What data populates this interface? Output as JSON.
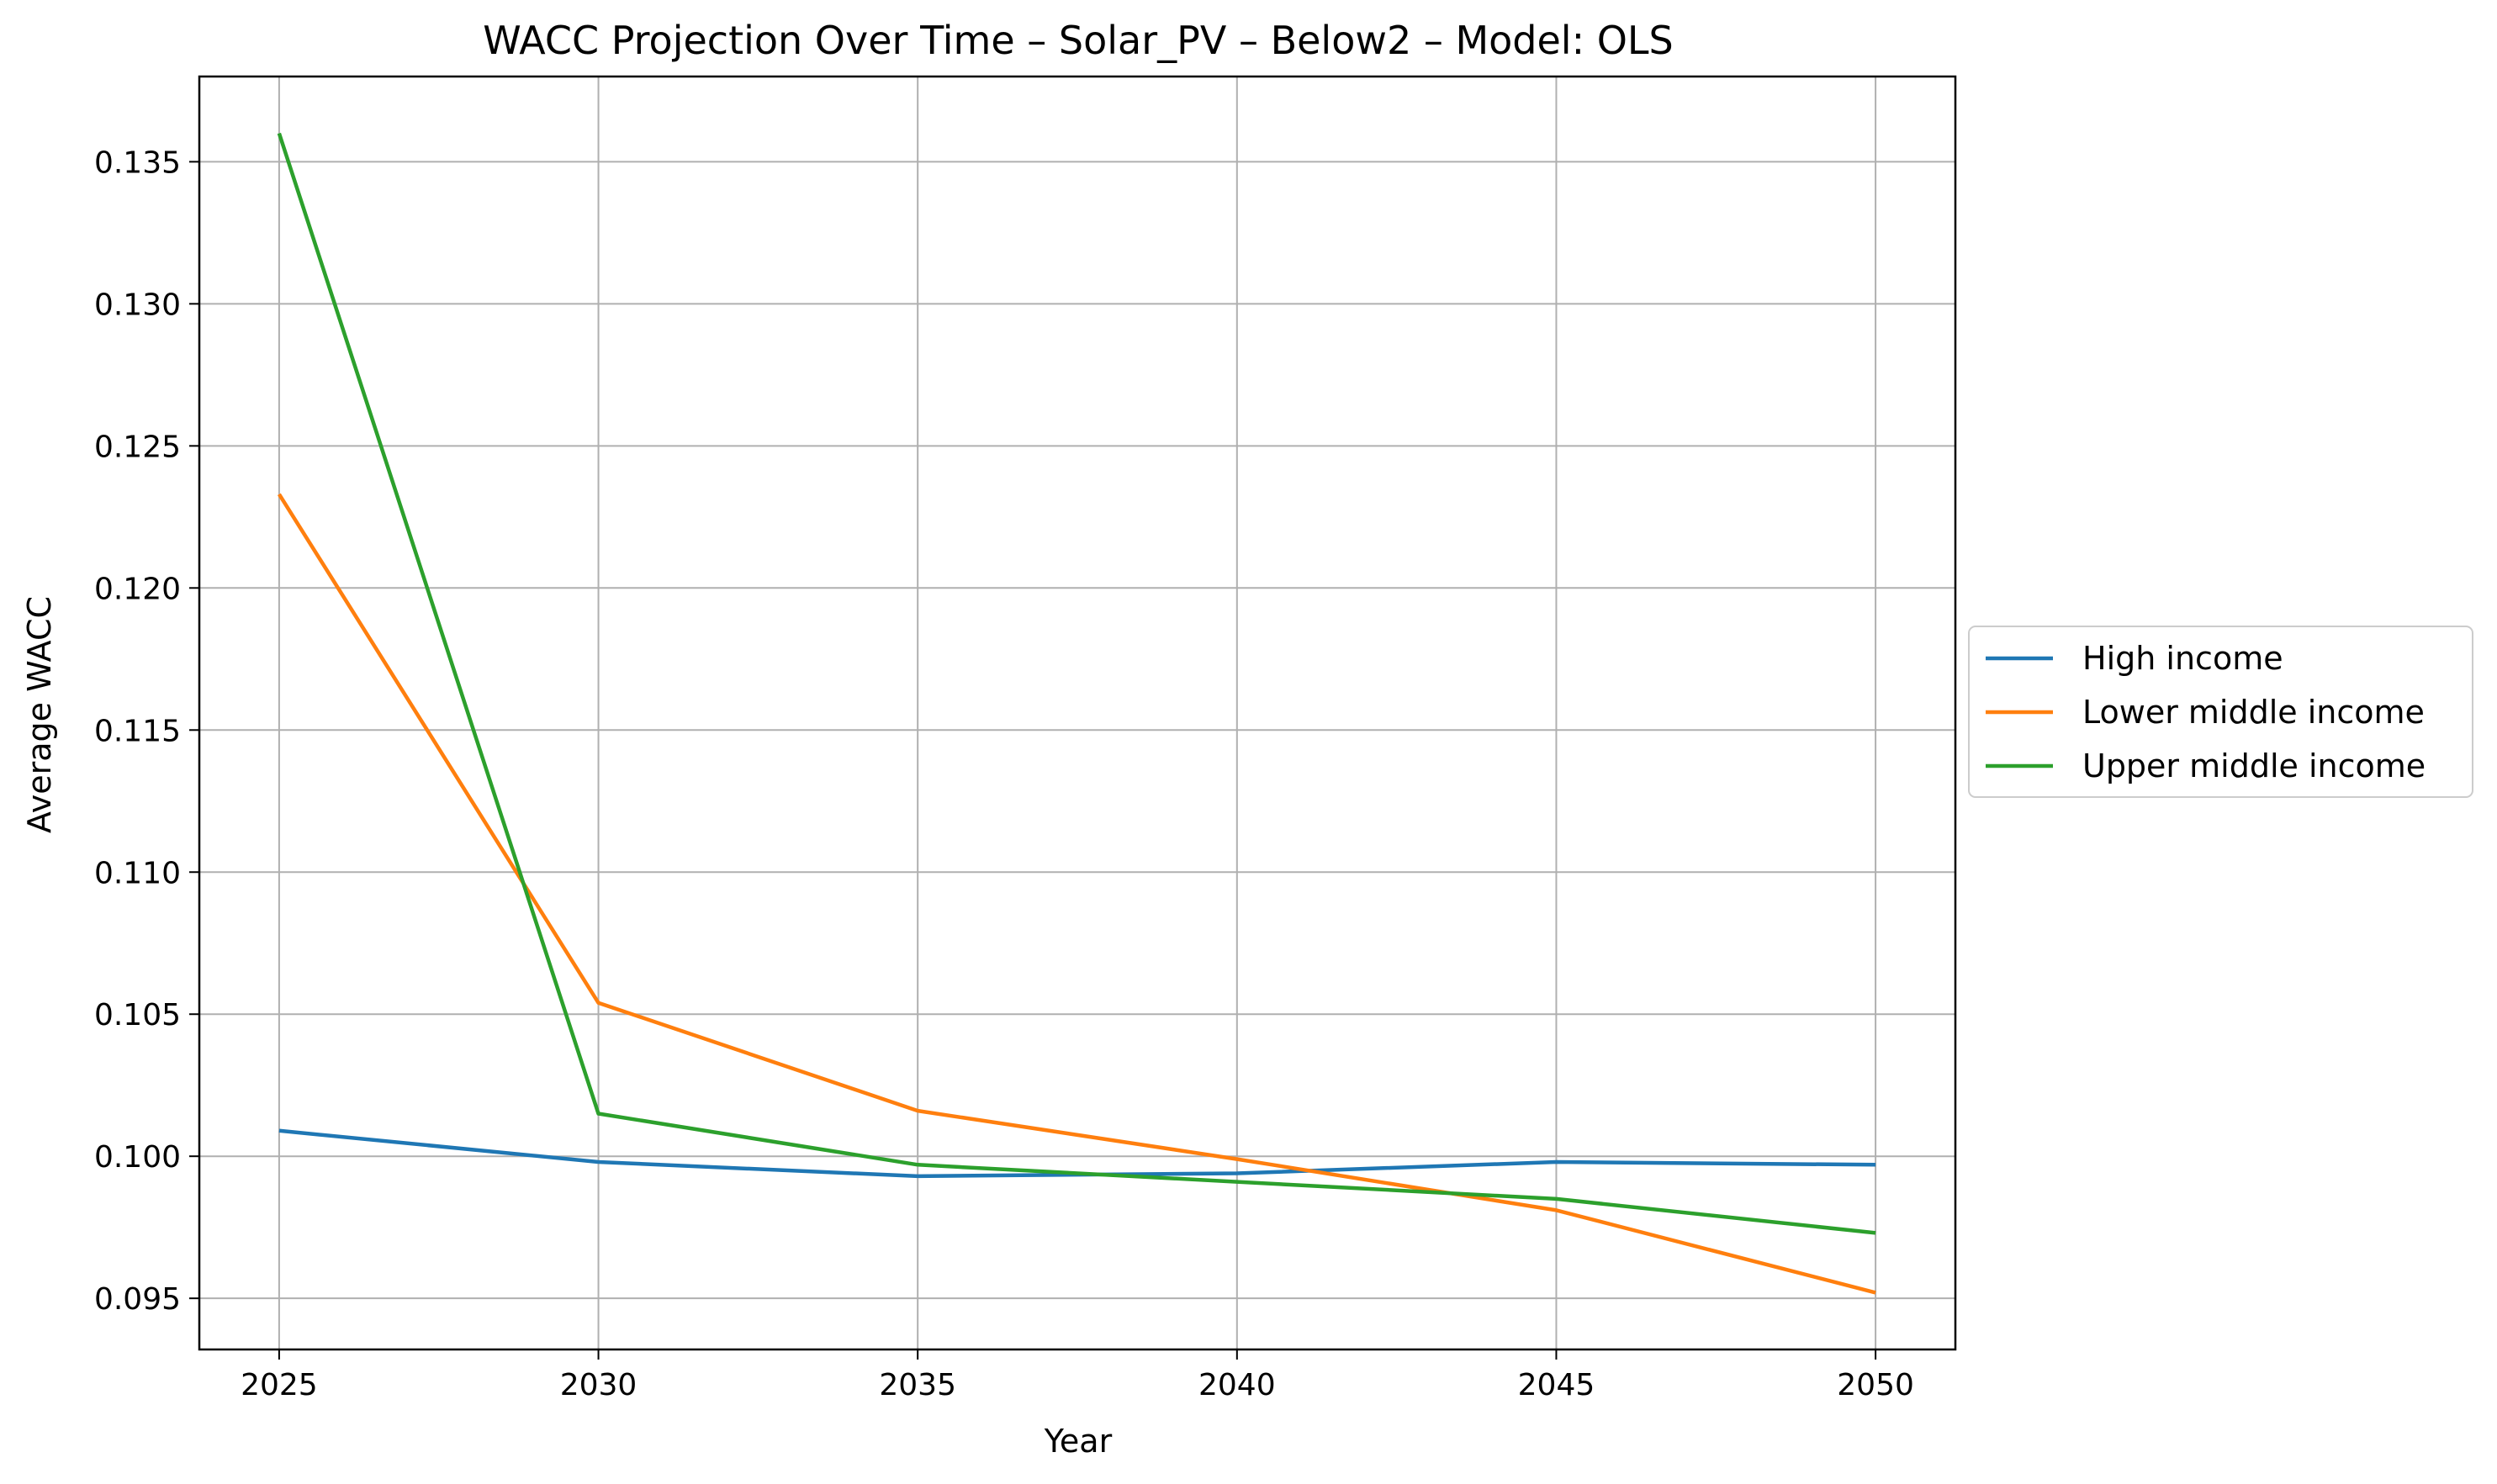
{
  "chart_data": {
    "type": "line",
    "title": "WACC Projection Over Time – Solar_PV – Below2 – Model: OLS",
    "xlabel": "Year",
    "ylabel": "Average WACC",
    "x": [
      2025,
      2030,
      2035,
      2040,
      2045,
      2050
    ],
    "xlim": [
      2023.75,
      2051.25
    ],
    "ylim": [
      0.0932,
      0.138
    ],
    "xticks": [
      "2025",
      "2030",
      "2035",
      "2040",
      "2045",
      "2050"
    ],
    "yticks": [
      "0.095",
      "0.100",
      "0.105",
      "0.110",
      "0.115",
      "0.120",
      "0.125",
      "0.130",
      "0.135"
    ],
    "grid": true,
    "legend_position": "center-right-outside",
    "series": [
      {
        "name": "High income",
        "color": "#1f77b4",
        "values": [
          0.1009,
          0.0998,
          0.0993,
          0.0994,
          0.0998,
          0.0997
        ]
      },
      {
        "name": "Lower middle income",
        "color": "#ff7f0e",
        "values": [
          0.1233,
          0.1054,
          0.1016,
          0.0999,
          0.0981,
          0.0952
        ]
      },
      {
        "name": "Upper middle income",
        "color": "#2ca02c",
        "values": [
          0.136,
          0.1015,
          0.0997,
          0.0991,
          0.0985,
          0.0973
        ]
      }
    ]
  }
}
